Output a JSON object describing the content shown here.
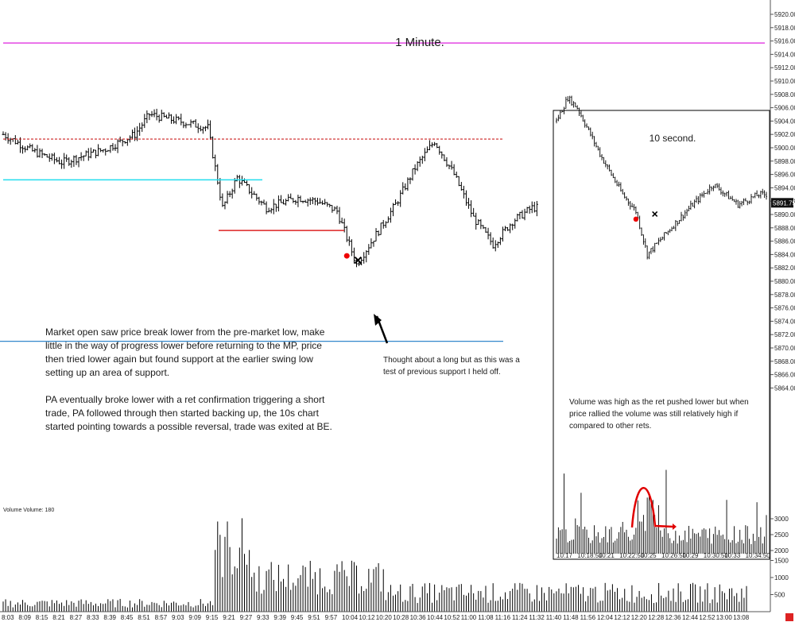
{
  "chart_data": [
    {
      "type": "candlestick-ohlc",
      "title": "1 Minute.",
      "colors": {
        "bars": "#000000",
        "pm_line": "#dd22dd",
        "cyan_line": "#22ddee",
        "blue_line": "#3388cc",
        "red_dashed": "#cc2222",
        "red_support": "#dd2222",
        "entry_dot": "#ee0000"
      },
      "y_ticks": [
        5920,
        5918,
        5916,
        5914,
        5912,
        5910,
        5908,
        5906,
        5904,
        5902,
        5900,
        5898,
        5896,
        5894,
        5892,
        5890,
        5888,
        5886,
        5884,
        5882,
        5880,
        5878,
        5876,
        5874,
        5872,
        5870,
        5868,
        5866,
        5864
      ],
      "x_ticks": [
        "8:03",
        "8:09",
        "8:15",
        "8:21",
        "8:27",
        "8:33",
        "8:39",
        "8:45",
        "8:51",
        "8:57",
        "9:03",
        "9:09",
        "9:15",
        "9:21",
        "9:27",
        "9:33",
        "9:39",
        "9:45",
        "9:51",
        "9:57",
        "10:04",
        "10:12",
        "10:20",
        "10:28",
        "10:36",
        "10:44",
        "10:52",
        "11:00",
        "11:08",
        "11:16",
        "11:24",
        "11:32",
        "11:40",
        "11:48",
        "11:56",
        "12:04",
        "12:12",
        "12:20",
        "12:28",
        "12:36",
        "12:44",
        "12:52",
        "13:00",
        "13:08"
      ],
      "price_key_points": [
        {
          "t": "8:03",
          "price": 5902.0
        },
        {
          "t": "8:15",
          "price": 5899.5
        },
        {
          "t": "8:27",
          "price": 5897.8
        },
        {
          "t": "8:45",
          "price": 5899.8
        },
        {
          "t": "8:57",
          "price": 5902.0
        },
        {
          "t": "9:03",
          "price": 5905.0
        },
        {
          "t": "9:15",
          "price": 5904.0
        },
        {
          "t": "9:27",
          "price": 5903.0
        },
        {
          "t": "9:33",
          "price": 5891.0
        },
        {
          "t": "9:39",
          "price": 5895.5
        },
        {
          "t": "9:51",
          "price": 5891.0
        },
        {
          "t": "10:04",
          "price": 5892.5
        },
        {
          "t": "10:12",
          "price": 5892.0
        },
        {
          "t": "10:20",
          "price": 5890.5
        },
        {
          "t": "10:28",
          "price": 5882.5
        },
        {
          "t": "10:36",
          "price": 5887.0
        },
        {
          "t": "10:44",
          "price": 5891.5
        },
        {
          "t": "10:52",
          "price": 5897.0
        },
        {
          "t": "11:00",
          "price": 5901.0
        },
        {
          "t": "11:08",
          "price": 5896.0
        },
        {
          "t": "11:16",
          "price": 5889.5
        },
        {
          "t": "11:24",
          "price": 5885.5
        },
        {
          "t": "11:32",
          "price": 5889.0
        },
        {
          "t": "11:40",
          "price": 5891.0
        }
      ],
      "levels": {
        "pre_market_low_dashed": 5901.3,
        "pm_line": 5915.7,
        "cyan_line": 5895.2,
        "support_line": 5887.6,
        "blue_line": 5871.0
      },
      "entry_marker": {
        "t": "10:24",
        "price": 5883.8
      },
      "exit_marker": {
        "t": "10:26",
        "price": 5883.5
      },
      "volume_label": "Volume  Volume: 180",
      "volume_ticks": [
        3000,
        2500,
        2000,
        1500,
        1000,
        500
      ],
      "last_price": "5891.75"
    },
    {
      "type": "candlestick-ohlc",
      "title": "10 second.",
      "x_ticks": [
        "10:17",
        "10:18:50",
        "10:21",
        "10:22:50",
        "10:25",
        "10:26:50",
        "10:29",
        "10:30:50",
        "10:33",
        "10:34:50"
      ],
      "price_key_points": [
        {
          "t": "10:17",
          "price": 5904.0
        },
        {
          "t": "10:18",
          "price": 5907.5
        },
        {
          "t": "10:18:50",
          "price": 5906.0
        },
        {
          "t": "10:21",
          "price": 5898.5
        },
        {
          "t": "10:22:50",
          "price": 5893.0
        },
        {
          "t": "10:24",
          "price": 5890.5
        },
        {
          "t": "10:25",
          "price": 5884.0
        },
        {
          "t": "10:26:50",
          "price": 5887.5
        },
        {
          "t": "10:29",
          "price": 5891.5
        },
        {
          "t": "10:30:50",
          "price": 5894.5
        },
        {
          "t": "10:33",
          "price": 5891.5
        },
        {
          "t": "10:34:50",
          "price": 5893.0
        }
      ],
      "entry_marker": {
        "t": "10:24",
        "price": 5889.3
      },
      "exit_marker": {
        "t": "10:25:40",
        "price": 5889.0
      }
    }
  ],
  "annotations": {
    "main_text": [
      "Market open saw price break lower from the pre-market low, make",
      "little in the way of progress lower before returning to the MP, price",
      "then tried lower again but found support at the earlier swing low",
      "setting up an area of support."
    ],
    "main_text2": [
      "PA eventually broke lower with a ret confirmation triggering a short",
      "trade, PA followed through then started backing up, the 10s chart",
      "started pointing towards a possible reversal, trade was exited at BE."
    ],
    "long_thought": [
      "Thought about a long but as this was a",
      "test of previous support I held off."
    ],
    "volume_note": [
      "Volume was high as the ret pushed lower but when",
      "price rallied the volume was still relatively high if",
      "compared to other rets."
    ]
  }
}
